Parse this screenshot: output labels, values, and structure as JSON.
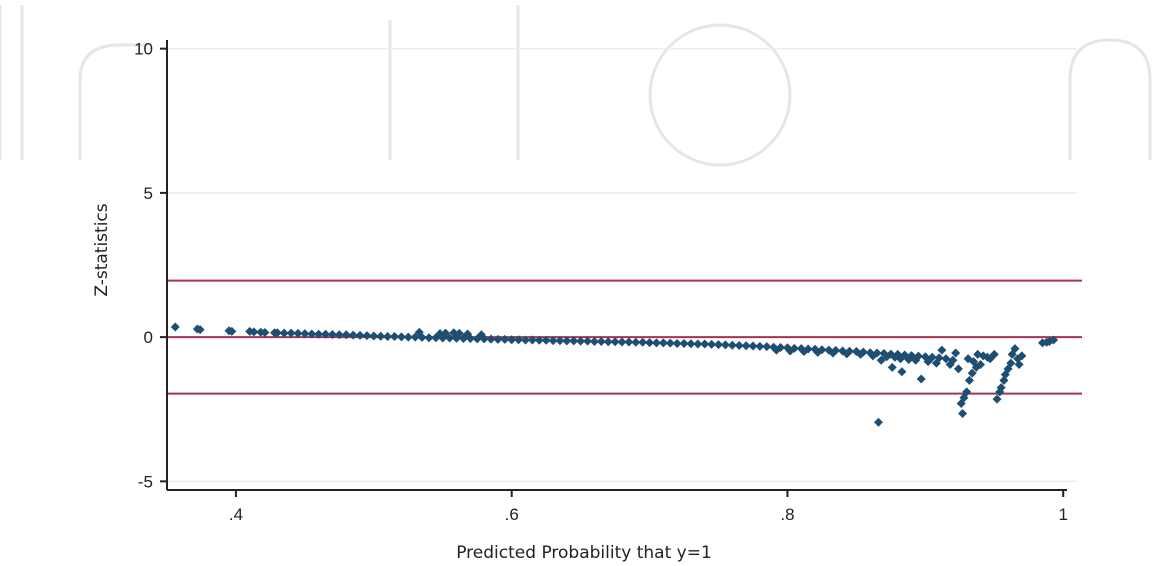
{
  "chart_data": {
    "type": "scatter",
    "title": "",
    "xlabel": "Predicted Probability that y=1",
    "ylabel": "Z-statistics",
    "xlim": [
      0.35,
      1.01
    ],
    "ylim": [
      -5.3,
      10.3
    ],
    "x_ticks": [
      {
        "value": 0.4,
        "label": ".4"
      },
      {
        "value": 0.6,
        "label": ".6"
      },
      {
        "value": 0.8,
        "label": ".8"
      },
      {
        "value": 1.0,
        "label": "1"
      }
    ],
    "y_ticks": [
      {
        "value": 10,
        "label": "10"
      },
      {
        "value": 5,
        "label": "5"
      },
      {
        "value": 0,
        "label": "0"
      },
      {
        "value": -5,
        "label": "-5"
      }
    ],
    "grid": true,
    "reference_lines": [
      1.96,
      0,
      -1.96
    ],
    "colors": {
      "points": "#1f4e73",
      "reference_lines": "#a8324e",
      "grid": "#ececec",
      "axis": "#222222"
    },
    "points": [
      [
        0.356,
        0.35
      ],
      [
        0.372,
        0.28
      ],
      [
        0.374,
        0.26
      ],
      [
        0.395,
        0.22
      ],
      [
        0.397,
        0.2
      ],
      [
        0.41,
        0.2
      ],
      [
        0.413,
        0.18
      ],
      [
        0.418,
        0.17
      ],
      [
        0.421,
        0.16
      ],
      [
        0.428,
        0.15
      ],
      [
        0.43,
        0.15
      ],
      [
        0.435,
        0.14
      ],
      [
        0.44,
        0.14
      ],
      [
        0.445,
        0.13
      ],
      [
        0.45,
        0.12
      ],
      [
        0.455,
        0.11
      ],
      [
        0.46,
        0.1
      ],
      [
        0.465,
        0.1
      ],
      [
        0.47,
        0.09
      ],
      [
        0.475,
        0.08
      ],
      [
        0.48,
        0.08
      ],
      [
        0.485,
        0.07
      ],
      [
        0.49,
        0.06
      ],
      [
        0.495,
        0.05
      ],
      [
        0.5,
        0.04
      ],
      [
        0.505,
        0.03
      ],
      [
        0.51,
        0.02
      ],
      [
        0.515,
        0.02
      ],
      [
        0.52,
        0.01
      ],
      [
        0.525,
        0.0
      ],
      [
        0.53,
        0.0
      ],
      [
        0.533,
        0.17
      ],
      [
        0.535,
        -0.01
      ],
      [
        0.54,
        -0.02
      ],
      [
        0.545,
        -0.02
      ],
      [
        0.548,
        0.12
      ],
      [
        0.55,
        -0.03
      ],
      [
        0.552,
        0.14
      ],
      [
        0.555,
        -0.03
      ],
      [
        0.558,
        0.15
      ],
      [
        0.56,
        -0.04
      ],
      [
        0.562,
        0.13
      ],
      [
        0.565,
        -0.05
      ],
      [
        0.568,
        0.11
      ],
      [
        0.57,
        -0.05
      ],
      [
        0.575,
        -0.06
      ],
      [
        0.578,
        0.08
      ],
      [
        0.58,
        -0.06
      ],
      [
        0.585,
        -0.07
      ],
      [
        0.59,
        -0.08
      ],
      [
        0.595,
        -0.08
      ],
      [
        0.6,
        -0.09
      ],
      [
        0.605,
        -0.09
      ],
      [
        0.61,
        -0.1
      ],
      [
        0.615,
        -0.1
      ],
      [
        0.62,
        -0.11
      ],
      [
        0.625,
        -0.11
      ],
      [
        0.63,
        -0.12
      ],
      [
        0.635,
        -0.12
      ],
      [
        0.64,
        -0.13
      ],
      [
        0.645,
        -0.13
      ],
      [
        0.65,
        -0.14
      ],
      [
        0.655,
        -0.14
      ],
      [
        0.66,
        -0.15
      ],
      [
        0.665,
        -0.15
      ],
      [
        0.67,
        -0.16
      ],
      [
        0.675,
        -0.16
      ],
      [
        0.68,
        -0.17
      ],
      [
        0.685,
        -0.17
      ],
      [
        0.69,
        -0.18
      ],
      [
        0.695,
        -0.18
      ],
      [
        0.7,
        -0.19
      ],
      [
        0.705,
        -0.2
      ],
      [
        0.71,
        -0.2
      ],
      [
        0.715,
        -0.21
      ],
      [
        0.72,
        -0.22
      ],
      [
        0.725,
        -0.22
      ],
      [
        0.73,
        -0.23
      ],
      [
        0.735,
        -0.24
      ],
      [
        0.74,
        -0.24
      ],
      [
        0.745,
        -0.25
      ],
      [
        0.75,
        -0.26
      ],
      [
        0.755,
        -0.27
      ],
      [
        0.76,
        -0.28
      ],
      [
        0.765,
        -0.29
      ],
      [
        0.77,
        -0.3
      ],
      [
        0.775,
        -0.31
      ],
      [
        0.78,
        -0.32
      ],
      [
        0.785,
        -0.33
      ],
      [
        0.79,
        -0.35
      ],
      [
        0.792,
        -0.45
      ],
      [
        0.795,
        -0.36
      ],
      [
        0.8,
        -0.37
      ],
      [
        0.802,
        -0.48
      ],
      [
        0.805,
        -0.39
      ],
      [
        0.81,
        -0.4
      ],
      [
        0.812,
        -0.5
      ],
      [
        0.815,
        -0.41
      ],
      [
        0.82,
        -0.42
      ],
      [
        0.822,
        -0.53
      ],
      [
        0.825,
        -0.44
      ],
      [
        0.83,
        -0.45
      ],
      [
        0.833,
        -0.55
      ],
      [
        0.835,
        -0.46
      ],
      [
        0.84,
        -0.48
      ],
      [
        0.843,
        -0.58
      ],
      [
        0.845,
        -0.49
      ],
      [
        0.85,
        -0.5
      ],
      [
        0.853,
        -0.6
      ],
      [
        0.855,
        -0.52
      ],
      [
        0.86,
        -0.54
      ],
      [
        0.862,
        -0.65
      ],
      [
        0.865,
        -0.55
      ],
      [
        0.866,
        -2.95
      ],
      [
        0.868,
        -0.8
      ],
      [
        0.87,
        -0.57
      ],
      [
        0.872,
        -0.68
      ],
      [
        0.875,
        -0.59
      ],
      [
        0.876,
        -1.05
      ],
      [
        0.878,
        -0.7
      ],
      [
        0.88,
        -0.6
      ],
      [
        0.882,
        -0.75
      ],
      [
        0.883,
        -1.2
      ],
      [
        0.885,
        -0.62
      ],
      [
        0.888,
        -0.78
      ],
      [
        0.89,
        -0.64
      ],
      [
        0.893,
        -0.8
      ],
      [
        0.895,
        -0.66
      ],
      [
        0.897,
        -1.45
      ],
      [
        0.9,
        -0.68
      ],
      [
        0.902,
        -0.85
      ],
      [
        0.905,
        -0.7
      ],
      [
        0.908,
        -0.9
      ],
      [
        0.91,
        -0.72
      ],
      [
        0.912,
        -0.45
      ],
      [
        0.915,
        -0.75
      ],
      [
        0.918,
        -0.95
      ],
      [
        0.92,
        -0.8
      ],
      [
        0.922,
        -0.55
      ],
      [
        0.924,
        -1.1
      ],
      [
        0.926,
        -2.3
      ],
      [
        0.927,
        -2.65
      ],
      [
        0.928,
        -2.1
      ],
      [
        0.93,
        -1.9
      ],
      [
        0.931,
        -0.75
      ],
      [
        0.932,
        -1.5
      ],
      [
        0.934,
        -1.25
      ],
      [
        0.935,
        -0.85
      ],
      [
        0.937,
        -1.05
      ],
      [
        0.938,
        -0.6
      ],
      [
        0.94,
        -0.95
      ],
      [
        0.942,
        -0.65
      ],
      [
        0.945,
        -0.7
      ],
      [
        0.947,
        -0.75
      ],
      [
        0.95,
        -0.6
      ],
      [
        0.952,
        -2.15
      ],
      [
        0.954,
        -1.9
      ],
      [
        0.955,
        -1.75
      ],
      [
        0.957,
        -1.5
      ],
      [
        0.958,
        -1.3
      ],
      [
        0.96,
        -1.1
      ],
      [
        0.962,
        -0.9
      ],
      [
        0.963,
        -0.6
      ],
      [
        0.965,
        -0.4
      ],
      [
        0.967,
        -0.75
      ],
      [
        0.968,
        -0.95
      ],
      [
        0.97,
        -0.65
      ],
      [
        0.985,
        -0.2
      ],
      [
        0.988,
        -0.18
      ],
      [
        0.99,
        -0.15
      ],
      [
        0.993,
        -0.1
      ]
    ]
  }
}
